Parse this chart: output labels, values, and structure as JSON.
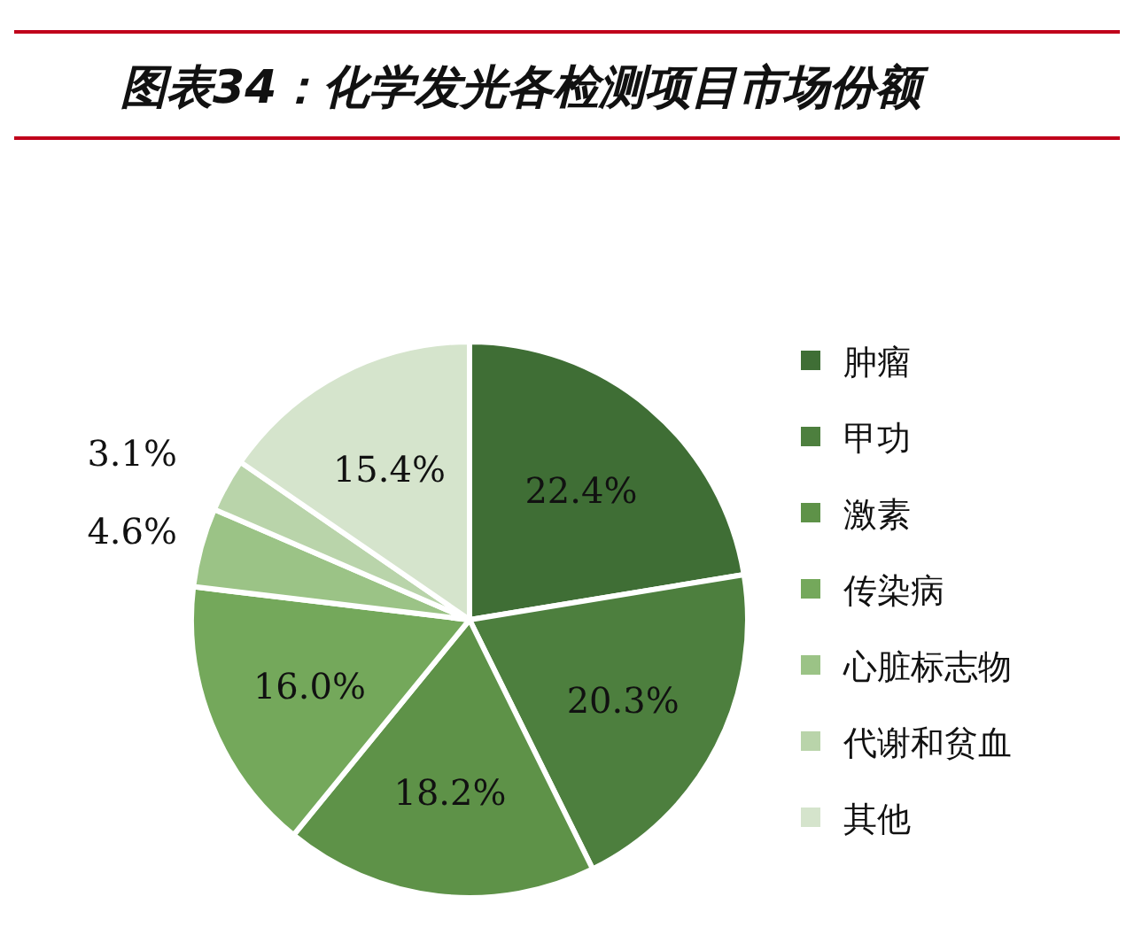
{
  "chart_data": {
    "type": "pie",
    "title": "图表34：化学发光各检测项目市场份额",
    "categories": [
      "肿瘤",
      "甲功",
      "激素",
      "传染病",
      "心脏标志物",
      "代谢和贫血",
      "其他"
    ],
    "values": [
      22.4,
      20.3,
      18.2,
      16.0,
      4.6,
      3.1,
      15.4
    ],
    "value_labels": [
      "22.4%",
      "20.3%",
      "18.2%",
      "16.0%",
      "4.6%",
      "3.1%",
      "15.4%"
    ],
    "colors": [
      "#3f6e35",
      "#4d7f3e",
      "#5e9248",
      "#74a85b",
      "#9bc386",
      "#b9d4aa",
      "#d5e4cc"
    ],
    "legend": "right"
  }
}
